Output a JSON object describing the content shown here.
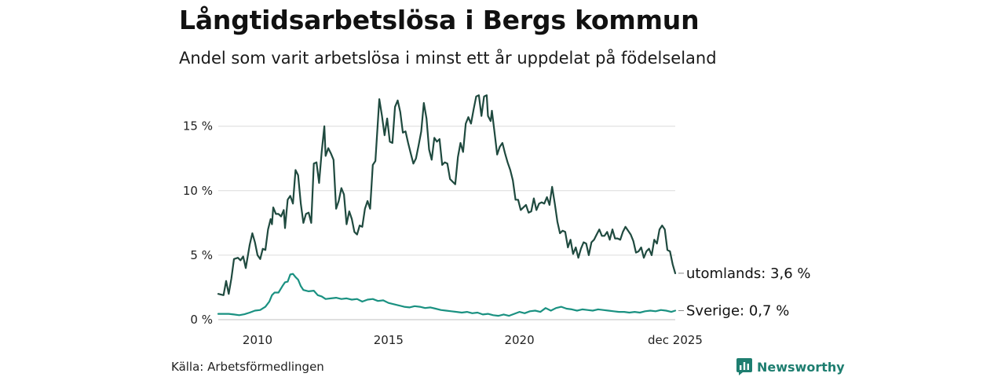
{
  "title": "Långtidsarbetslösa i Bergs kommun",
  "subtitle": "Andel som varit arbetslösa i minst ett år uppdelat på födelseland",
  "source": "Källa: Arbetsförmedlingen",
  "brand": {
    "name": "Newsworthy",
    "color": "#1e7e70"
  },
  "chart_data": {
    "type": "line",
    "title": "Långtidsarbetslösa i Bergs kommun",
    "subtitle": "Andel som varit arbetslösa i minst ett år uppdelat på födelseland",
    "xlabel": "",
    "ylabel": "",
    "x_domain": [
      2008.5,
      2025.95
    ],
    "ylim": [
      0,
      17.6
    ],
    "grid": true,
    "x_ticks": [
      {
        "value": 2010,
        "label": "2010"
      },
      {
        "value": 2015,
        "label": "2015"
      },
      {
        "value": 2020,
        "label": "2020"
      },
      {
        "value": 2025.95,
        "label": "dec 2025"
      }
    ],
    "y_ticks": [
      {
        "value": 0,
        "label": "0 %"
      },
      {
        "value": 5,
        "label": "5 %"
      },
      {
        "value": 10,
        "label": "10 %"
      },
      {
        "value": 15,
        "label": "15 %"
      }
    ],
    "series": [
      {
        "name": "utomlands",
        "end_label": "utomlands: 3,6 %",
        "color": "#1f4a3f",
        "points": [
          [
            2008.5,
            2.0
          ],
          [
            2008.7,
            1.9
          ],
          [
            2008.8,
            3.0
          ],
          [
            2008.9,
            2.0
          ],
          [
            2009.0,
            3.2
          ],
          [
            2009.1,
            4.7
          ],
          [
            2009.25,
            4.8
          ],
          [
            2009.35,
            4.6
          ],
          [
            2009.45,
            4.9
          ],
          [
            2009.55,
            4.0
          ],
          [
            2009.7,
            5.8
          ],
          [
            2009.8,
            6.7
          ],
          [
            2009.9,
            6.0
          ],
          [
            2010.0,
            5.0
          ],
          [
            2010.1,
            4.7
          ],
          [
            2010.2,
            5.5
          ],
          [
            2010.3,
            5.4
          ],
          [
            2010.4,
            7.0
          ],
          [
            2010.5,
            7.8
          ],
          [
            2010.55,
            7.4
          ],
          [
            2010.6,
            8.7
          ],
          [
            2010.7,
            8.2
          ],
          [
            2010.8,
            8.2
          ],
          [
            2010.9,
            8.0
          ],
          [
            2011.0,
            8.5
          ],
          [
            2011.05,
            7.1
          ],
          [
            2011.15,
            9.3
          ],
          [
            2011.25,
            9.6
          ],
          [
            2011.35,
            9.0
          ],
          [
            2011.45,
            11.6
          ],
          [
            2011.55,
            11.2
          ],
          [
            2011.65,
            9.0
          ],
          [
            2011.75,
            7.5
          ],
          [
            2011.85,
            8.2
          ],
          [
            2011.95,
            8.3
          ],
          [
            2012.05,
            7.5
          ],
          [
            2012.15,
            12.1
          ],
          [
            2012.25,
            12.2
          ],
          [
            2012.35,
            10.6
          ],
          [
            2012.45,
            13.0
          ],
          [
            2012.55,
            15.0
          ],
          [
            2012.6,
            12.7
          ],
          [
            2012.7,
            13.3
          ],
          [
            2012.8,
            12.9
          ],
          [
            2012.9,
            12.4
          ],
          [
            2013.0,
            8.6
          ],
          [
            2013.1,
            9.2
          ],
          [
            2013.2,
            10.2
          ],
          [
            2013.3,
            9.7
          ],
          [
            2013.4,
            7.4
          ],
          [
            2013.5,
            8.4
          ],
          [
            2013.6,
            7.8
          ],
          [
            2013.7,
            6.8
          ],
          [
            2013.8,
            6.6
          ],
          [
            2013.9,
            7.3
          ],
          [
            2014.0,
            7.2
          ],
          [
            2014.1,
            8.6
          ],
          [
            2014.2,
            9.2
          ],
          [
            2014.3,
            8.6
          ],
          [
            2014.4,
            12.0
          ],
          [
            2014.5,
            12.3
          ],
          [
            2014.65,
            17.1
          ],
          [
            2014.75,
            15.8
          ],
          [
            2014.85,
            14.3
          ],
          [
            2014.95,
            15.6
          ],
          [
            2015.05,
            13.8
          ],
          [
            2015.15,
            13.7
          ],
          [
            2015.25,
            16.5
          ],
          [
            2015.35,
            17.0
          ],
          [
            2015.45,
            16.1
          ],
          [
            2015.55,
            14.5
          ],
          [
            2015.65,
            14.6
          ],
          [
            2015.75,
            13.7
          ],
          [
            2015.85,
            12.9
          ],
          [
            2015.95,
            12.1
          ],
          [
            2016.05,
            12.5
          ],
          [
            2016.15,
            13.5
          ],
          [
            2016.25,
            14.6
          ],
          [
            2016.35,
            16.8
          ],
          [
            2016.45,
            15.6
          ],
          [
            2016.55,
            13.2
          ],
          [
            2016.65,
            12.4
          ],
          [
            2016.75,
            14.1
          ],
          [
            2016.85,
            13.8
          ],
          [
            2016.95,
            14.0
          ],
          [
            2017.05,
            12.0
          ],
          [
            2017.15,
            12.2
          ],
          [
            2017.25,
            12.1
          ],
          [
            2017.35,
            10.9
          ],
          [
            2017.45,
            10.7
          ],
          [
            2017.55,
            10.5
          ],
          [
            2017.65,
            12.6
          ],
          [
            2017.75,
            13.7
          ],
          [
            2017.85,
            13.0
          ],
          [
            2017.95,
            15.2
          ],
          [
            2018.05,
            15.7
          ],
          [
            2018.15,
            15.2
          ],
          [
            2018.25,
            16.3
          ],
          [
            2018.35,
            17.3
          ],
          [
            2018.45,
            17.4
          ],
          [
            2018.55,
            15.8
          ],
          [
            2018.65,
            17.3
          ],
          [
            2018.75,
            17.4
          ],
          [
            2018.8,
            15.8
          ],
          [
            2018.9,
            15.4
          ],
          [
            2018.95,
            16.2
          ],
          [
            2019.05,
            14.5
          ],
          [
            2019.15,
            12.8
          ],
          [
            2019.25,
            13.4
          ],
          [
            2019.35,
            13.7
          ],
          [
            2019.45,
            12.9
          ],
          [
            2019.55,
            12.2
          ],
          [
            2019.65,
            11.6
          ],
          [
            2019.75,
            10.8
          ],
          [
            2019.85,
            9.3
          ],
          [
            2019.95,
            9.3
          ],
          [
            2020.05,
            8.5
          ],
          [
            2020.15,
            8.7
          ],
          [
            2020.25,
            8.9
          ],
          [
            2020.35,
            8.3
          ],
          [
            2020.45,
            8.4
          ],
          [
            2020.55,
            9.4
          ],
          [
            2020.65,
            8.5
          ],
          [
            2020.75,
            9.0
          ],
          [
            2020.85,
            9.1
          ],
          [
            2020.95,
            9.0
          ],
          [
            2021.05,
            9.5
          ],
          [
            2021.15,
            8.9
          ],
          [
            2021.25,
            10.3
          ],
          [
            2021.35,
            9.0
          ],
          [
            2021.45,
            7.6
          ],
          [
            2021.55,
            6.7
          ],
          [
            2021.65,
            6.9
          ],
          [
            2021.75,
            6.8
          ],
          [
            2021.85,
            5.6
          ],
          [
            2021.95,
            6.2
          ],
          [
            2022.05,
            5.1
          ],
          [
            2022.15,
            5.6
          ],
          [
            2022.25,
            4.8
          ],
          [
            2022.35,
            5.5
          ],
          [
            2022.45,
            6.0
          ],
          [
            2022.55,
            5.9
          ],
          [
            2022.65,
            5.0
          ],
          [
            2022.75,
            6.0
          ],
          [
            2022.85,
            6.2
          ],
          [
            2022.95,
            6.6
          ],
          [
            2023.05,
            7.0
          ],
          [
            2023.15,
            6.5
          ],
          [
            2023.25,
            6.5
          ],
          [
            2023.35,
            6.8
          ],
          [
            2023.45,
            6.2
          ],
          [
            2023.55,
            7.0
          ],
          [
            2023.65,
            6.3
          ],
          [
            2023.75,
            6.3
          ],
          [
            2023.85,
            6.2
          ],
          [
            2023.95,
            6.8
          ],
          [
            2024.05,
            7.2
          ],
          [
            2024.15,
            6.9
          ],
          [
            2024.25,
            6.6
          ],
          [
            2024.35,
            6.1
          ],
          [
            2024.45,
            5.2
          ],
          [
            2024.55,
            5.3
          ],
          [
            2024.65,
            5.6
          ],
          [
            2024.75,
            4.8
          ],
          [
            2024.85,
            5.3
          ],
          [
            2024.95,
            5.5
          ],
          [
            2025.05,
            5.0
          ],
          [
            2025.15,
            6.2
          ],
          [
            2025.25,
            5.9
          ],
          [
            2025.35,
            7.0
          ],
          [
            2025.45,
            7.3
          ],
          [
            2025.55,
            7.0
          ],
          [
            2025.65,
            5.4
          ],
          [
            2025.75,
            5.3
          ],
          [
            2025.85,
            4.3
          ],
          [
            2025.95,
            3.6
          ]
        ]
      },
      {
        "name": "Sverige",
        "end_label": "Sverige: 0,7 %",
        "color": "#1a9181",
        "points": [
          [
            2008.5,
            0.45
          ],
          [
            2008.7,
            0.45
          ],
          [
            2008.9,
            0.45
          ],
          [
            2009.1,
            0.4
          ],
          [
            2009.3,
            0.35
          ],
          [
            2009.5,
            0.42
          ],
          [
            2009.7,
            0.55
          ],
          [
            2009.9,
            0.7
          ],
          [
            2010.1,
            0.75
          ],
          [
            2010.3,
            1.0
          ],
          [
            2010.45,
            1.4
          ],
          [
            2010.55,
            1.9
          ],
          [
            2010.65,
            2.1
          ],
          [
            2010.8,
            2.1
          ],
          [
            2010.95,
            2.6
          ],
          [
            2011.05,
            2.9
          ],
          [
            2011.15,
            2.95
          ],
          [
            2011.25,
            3.5
          ],
          [
            2011.35,
            3.55
          ],
          [
            2011.45,
            3.3
          ],
          [
            2011.55,
            3.1
          ],
          [
            2011.65,
            2.6
          ],
          [
            2011.75,
            2.3
          ],
          [
            2011.95,
            2.2
          ],
          [
            2012.15,
            2.25
          ],
          [
            2012.3,
            1.9
          ],
          [
            2012.45,
            1.8
          ],
          [
            2012.6,
            1.6
          ],
          [
            2012.8,
            1.65
          ],
          [
            2013.0,
            1.7
          ],
          [
            2013.2,
            1.6
          ],
          [
            2013.4,
            1.65
          ],
          [
            2013.6,
            1.55
          ],
          [
            2013.8,
            1.6
          ],
          [
            2014.0,
            1.4
          ],
          [
            2014.2,
            1.55
          ],
          [
            2014.4,
            1.6
          ],
          [
            2014.6,
            1.45
          ],
          [
            2014.8,
            1.5
          ],
          [
            2015.0,
            1.3
          ],
          [
            2015.2,
            1.2
          ],
          [
            2015.4,
            1.1
          ],
          [
            2015.6,
            1.0
          ],
          [
            2015.8,
            0.95
          ],
          [
            2016.0,
            1.05
          ],
          [
            2016.2,
            1.0
          ],
          [
            2016.4,
            0.9
          ],
          [
            2016.6,
            0.95
          ],
          [
            2016.8,
            0.85
          ],
          [
            2017.0,
            0.75
          ],
          [
            2017.2,
            0.7
          ],
          [
            2017.4,
            0.65
          ],
          [
            2017.6,
            0.6
          ],
          [
            2017.8,
            0.55
          ],
          [
            2018.0,
            0.6
          ],
          [
            2018.2,
            0.5
          ],
          [
            2018.4,
            0.55
          ],
          [
            2018.6,
            0.4
          ],
          [
            2018.8,
            0.45
          ],
          [
            2019.0,
            0.35
          ],
          [
            2019.2,
            0.3
          ],
          [
            2019.4,
            0.4
          ],
          [
            2019.6,
            0.3
          ],
          [
            2019.8,
            0.45
          ],
          [
            2020.0,
            0.6
          ],
          [
            2020.2,
            0.5
          ],
          [
            2020.4,
            0.65
          ],
          [
            2020.6,
            0.7
          ],
          [
            2020.8,
            0.6
          ],
          [
            2021.0,
            0.9
          ],
          [
            2021.2,
            0.7
          ],
          [
            2021.4,
            0.9
          ],
          [
            2021.6,
            1.0
          ],
          [
            2021.8,
            0.85
          ],
          [
            2022.0,
            0.8
          ],
          [
            2022.2,
            0.7
          ],
          [
            2022.4,
            0.8
          ],
          [
            2022.6,
            0.75
          ],
          [
            2022.8,
            0.7
          ],
          [
            2023.0,
            0.8
          ],
          [
            2023.2,
            0.75
          ],
          [
            2023.4,
            0.7
          ],
          [
            2023.6,
            0.65
          ],
          [
            2023.8,
            0.6
          ],
          [
            2024.0,
            0.6
          ],
          [
            2024.2,
            0.55
          ],
          [
            2024.4,
            0.6
          ],
          [
            2024.6,
            0.55
          ],
          [
            2024.8,
            0.65
          ],
          [
            2025.0,
            0.7
          ],
          [
            2025.2,
            0.65
          ],
          [
            2025.4,
            0.75
          ],
          [
            2025.6,
            0.7
          ],
          [
            2025.8,
            0.6
          ],
          [
            2025.95,
            0.7
          ]
        ]
      }
    ]
  }
}
